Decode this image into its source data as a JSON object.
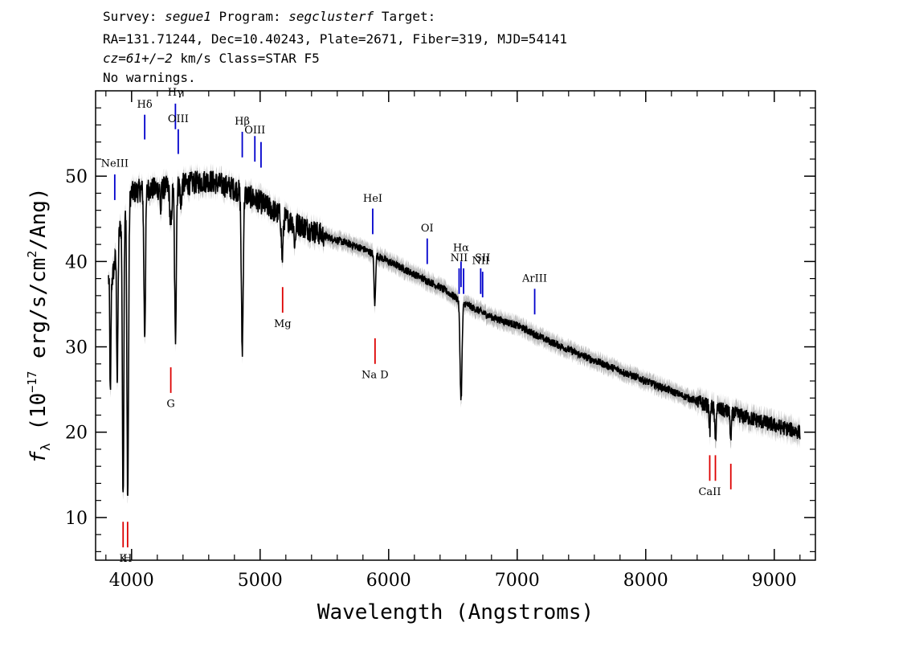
{
  "header": {
    "survey_label": "Survey:",
    "survey": "segue1",
    "program_label": "Program:",
    "program": "segclusterf",
    "target_label": "Target:",
    "line2": "RA=131.71244, Dec=10.40243, Plate=2671, Fiber=319, MJD=54141",
    "cz": "cz=61+/−2",
    "cz_units": "km/s",
    "class": "Class=STAR F5",
    "warnings": "No warnings."
  },
  "chart_data": {
    "type": "line",
    "xlabel": "Wavelength (Angstroms)",
    "ylabel_main": "f",
    "ylabel_sub": "λ",
    "ylabel_rest": " (10",
    "ylabel_exp": "−17",
    "ylabel_units": " erg/s/cm",
    "ylabel_sq": "2",
    "ylabel_end": "/Ang)",
    "xlim": [
      3720,
      9320
    ],
    "ylim": [
      5,
      60
    ],
    "xticks": [
      4000,
      5000,
      6000,
      7000,
      8000,
      9000
    ],
    "yticks": [
      10,
      20,
      30,
      40,
      50
    ],
    "continuum": [
      [
        3850,
        38
      ],
      [
        3900,
        43
      ],
      [
        3950,
        47
      ],
      [
        4000,
        48
      ],
      [
        4100,
        48.5
      ],
      [
        4200,
        48.5
      ],
      [
        4400,
        49
      ],
      [
        4600,
        49.5
      ],
      [
        4800,
        48.5
      ],
      [
        5000,
        47
      ],
      [
        5200,
        45
      ],
      [
        5500,
        43
      ],
      [
        5800,
        41.5
      ],
      [
        6000,
        40
      ],
      [
        6200,
        38.5
      ],
      [
        6400,
        37
      ],
      [
        6600,
        35
      ],
      [
        6800,
        33.5
      ],
      [
        7000,
        32.5
      ],
      [
        7200,
        31
      ],
      [
        7500,
        29
      ],
      [
        8000,
        26
      ],
      [
        8500,
        23
      ],
      [
        9000,
        20.8
      ],
      [
        9200,
        20
      ]
    ],
    "absorption": [
      {
        "center": 3835,
        "depth": 14,
        "width": 6
      },
      {
        "center": 3889,
        "depth": 16,
        "width": 7
      },
      {
        "center": 3934,
        "depth": 34,
        "width": 8
      },
      {
        "center": 3970,
        "depth": 35,
        "width": 9
      },
      {
        "center": 4102,
        "depth": 17,
        "width": 9
      },
      {
        "center": 4227,
        "depth": 3,
        "width": 5
      },
      {
        "center": 4305,
        "depth": 5,
        "width": 10
      },
      {
        "center": 4341,
        "depth": 18,
        "width": 9
      },
      {
        "center": 4384,
        "depth": 3,
        "width": 6
      },
      {
        "center": 4861,
        "depth": 18.5,
        "width": 10
      },
      {
        "center": 5172,
        "depth": 5,
        "width": 9
      },
      {
        "center": 5270,
        "depth": 2.5,
        "width": 8
      },
      {
        "center": 5892,
        "depth": 6,
        "width": 8
      },
      {
        "center": 6563,
        "depth": 11.5,
        "width": 11
      },
      {
        "center": 8498,
        "depth": 3,
        "width": 6
      },
      {
        "center": 8542,
        "depth": 4,
        "width": 7
      },
      {
        "center": 8662,
        "depth": 3.5,
        "width": 7
      }
    ],
    "lines_emission": [
      {
        "label": "NeIII",
        "x": 3869,
        "y0": 47.2,
        "y1": 50.2,
        "ly": 51.5
      },
      {
        "label": "Hδ",
        "x": 4102,
        "y0": 54.3,
        "y1": 57.2,
        "ly": 58.4
      },
      {
        "label": "Hγ",
        "x": 4341,
        "y0": 55.5,
        "y1": 58.5,
        "ly": 59.8
      },
      {
        "label": "OIII",
        "x": 4363,
        "y0": 52.6,
        "y1": 55.5,
        "ly": 56.7
      },
      {
        "label": "Hβ",
        "x": 4861,
        "y0": 52.2,
        "y1": 55.2,
        "ly": 56.4
      },
      {
        "label": "OIII",
        "x": 4959,
        "y0": 51.7,
        "y1": 54.7,
        "ly": 55.4
      },
      {
        "label": "",
        "x": 5007,
        "y0": 51,
        "y1": 54,
        "ly": 0
      },
      {
        "label": "HeI",
        "x": 5876,
        "y0": 43.2,
        "y1": 46.2,
        "ly": 47.4
      },
      {
        "label": "OI",
        "x": 6300,
        "y0": 39.7,
        "y1": 42.7,
        "ly": 43.9
      },
      {
        "label": "NII",
        "x": 6548,
        "y0": 36.2,
        "y1": 39.2,
        "ly": 40.4
      },
      {
        "label": "Hα",
        "x": 6563,
        "y0": 37.0,
        "y1": 40.0,
        "ly": 41.6
      },
      {
        "label": "",
        "x": 6583,
        "y0": 36.2,
        "y1": 39.2,
        "ly": 0
      },
      {
        "label": "NII",
        "x": 6716,
        "y0": 36.2,
        "y1": 39.2,
        "ly": 40.1
      },
      {
        "label": "SII",
        "x": 6731,
        "y0": 35.8,
        "y1": 38.8,
        "ly": 40.4
      },
      {
        "label": "ArIII",
        "x": 7136,
        "y0": 33.8,
        "y1": 36.8,
        "ly": 38.0
      }
    ],
    "lines_absorption": [
      {
        "label": "K",
        "x": 3934,
        "y0": 6.5,
        "y1": 9.5,
        "ly": 5.2
      },
      {
        "label": "H",
        "x": 3969,
        "y0": 6.5,
        "y1": 9.5,
        "ly": 5.2
      },
      {
        "label": "G",
        "x": 4305,
        "y0": 24.6,
        "y1": 27.6,
        "ly": 23.3
      },
      {
        "label": "Mg",
        "x": 5175,
        "y0": 34.0,
        "y1": 37.0,
        "ly": 32.7
      },
      {
        "label": "Na D",
        "x": 5894,
        "y0": 28.0,
        "y1": 31.0,
        "ly": 26.7
      },
      {
        "label": "CaII",
        "x": 8498,
        "y0": 14.3,
        "y1": 17.3,
        "ly": 13.0
      },
      {
        "label": "",
        "x": 8542,
        "y0": 14.3,
        "y1": 17.3,
        "ly": 0
      },
      {
        "label": "",
        "x": 8662,
        "y0": 13.3,
        "y1": 16.3,
        "ly": 0
      }
    ]
  },
  "colors": {
    "spectrum": "#000000",
    "error_band": "#bdbdbd",
    "emission_marker": "#0000cc",
    "absorption_marker": "#dd0000",
    "axes": "#000000"
  }
}
